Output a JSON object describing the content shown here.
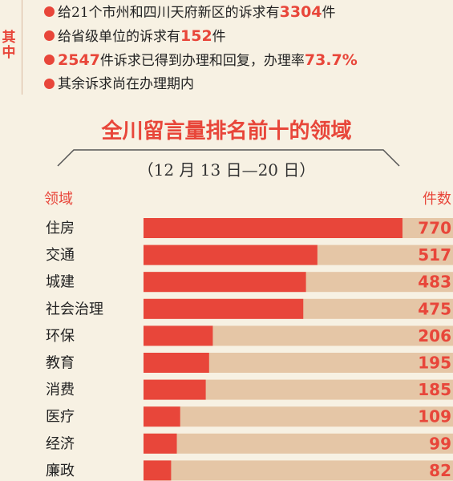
{
  "side_label": "其中",
  "bullets": [
    {
      "pre": "给21个市州和四川天府新区的诉求有",
      "num": "3304",
      "post": "件"
    },
    {
      "pre": "给省级单位的诉求有",
      "num": "152",
      "post": "件"
    },
    {
      "pre": "",
      "num": "2547",
      "post": "件诉求已得到办理和回复，办理率",
      "num2": "73.7%"
    },
    {
      "pre": "其余诉求尚在办理期内",
      "num": "",
      "post": ""
    }
  ],
  "colors": {
    "accent": "#e8463a",
    "track": "#e5c6a6"
  },
  "chart_data": {
    "type": "bar",
    "orientation": "horizontal",
    "title": "全川留言量排名前十的领域",
    "subtitle": "（12 月 13 日—20 日）",
    "category_header": "领域",
    "value_header": "件数",
    "categories": [
      "住房",
      "交通",
      "城建",
      "社会治理",
      "环保",
      "教育",
      "消费",
      "医疗",
      "经济",
      "廉政"
    ],
    "values": [
      770,
      517,
      483,
      475,
      206,
      195,
      185,
      109,
      99,
      82
    ]
  }
}
